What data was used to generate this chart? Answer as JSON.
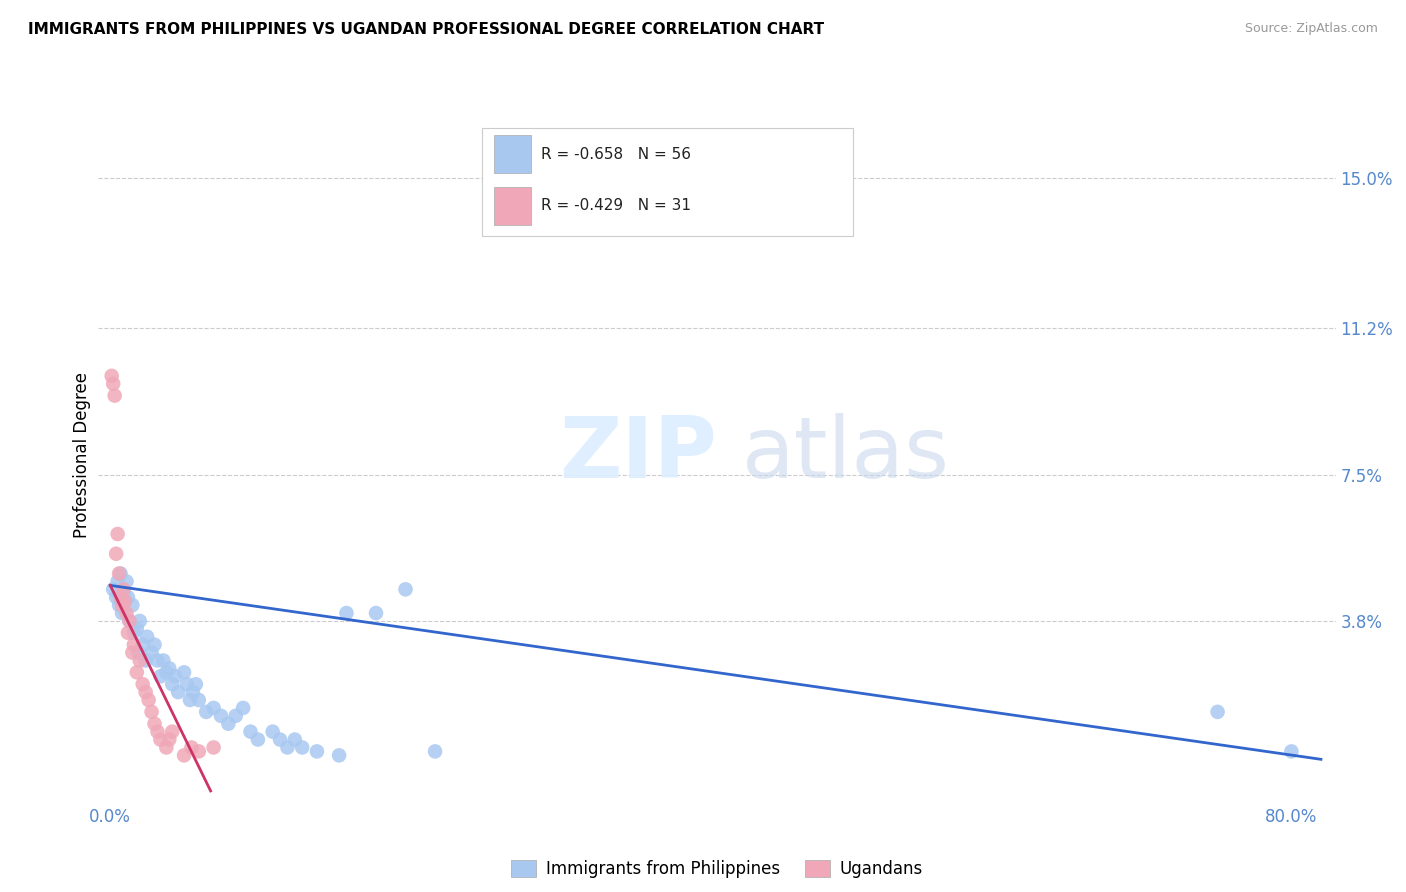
{
  "title": "IMMIGRANTS FROM PHILIPPINES VS UGANDAN PROFESSIONAL DEGREE CORRELATION CHART",
  "source": "Source: ZipAtlas.com",
  "ylabel": "Professional Degree",
  "y_tick_labels": [
    "15.0%",
    "11.2%",
    "7.5%",
    "3.8%"
  ],
  "y_tick_values": [
    0.15,
    0.112,
    0.075,
    0.038
  ],
  "xlim": [
    -0.008,
    0.83
  ],
  "ylim": [
    -0.008,
    0.168
  ],
  "legend1_r": "-0.658",
  "legend1_n": "56",
  "legend2_r": "-0.429",
  "legend2_n": "31",
  "blue_color": "#a8c8f0",
  "pink_color": "#f0a8b8",
  "blue_line_color": "#3366cc",
  "pink_line_color": "#cc3366",
  "blue_line_x": [
    0.0,
    0.82
  ],
  "blue_line_y": [
    0.047,
    0.003
  ],
  "pink_line_x": [
    0.0,
    0.068
  ],
  "pink_line_y": [
    0.047,
    -0.005
  ],
  "philippines_x": [
    0.002,
    0.004,
    0.005,
    0.006,
    0.007,
    0.008,
    0.009,
    0.01,
    0.011,
    0.012,
    0.013,
    0.015,
    0.016,
    0.018,
    0.019,
    0.02,
    0.022,
    0.024,
    0.025,
    0.028,
    0.03,
    0.032,
    0.034,
    0.036,
    0.038,
    0.04,
    0.042,
    0.044,
    0.046,
    0.05,
    0.052,
    0.054,
    0.056,
    0.058,
    0.06,
    0.065,
    0.07,
    0.075,
    0.08,
    0.085,
    0.09,
    0.095,
    0.1,
    0.11,
    0.115,
    0.12,
    0.125,
    0.13,
    0.14,
    0.155,
    0.16,
    0.18,
    0.2,
    0.22,
    0.75,
    0.8
  ],
  "philippines_y": [
    0.046,
    0.044,
    0.048,
    0.042,
    0.05,
    0.04,
    0.045,
    0.043,
    0.048,
    0.044,
    0.038,
    0.042,
    0.035,
    0.036,
    0.03,
    0.038,
    0.032,
    0.028,
    0.034,
    0.03,
    0.032,
    0.028,
    0.024,
    0.028,
    0.025,
    0.026,
    0.022,
    0.024,
    0.02,
    0.025,
    0.022,
    0.018,
    0.02,
    0.022,
    0.018,
    0.015,
    0.016,
    0.014,
    0.012,
    0.014,
    0.016,
    0.01,
    0.008,
    0.01,
    0.008,
    0.006,
    0.008,
    0.006,
    0.005,
    0.004,
    0.04,
    0.04,
    0.046,
    0.005,
    0.015,
    0.005
  ],
  "ugandan_x": [
    0.001,
    0.002,
    0.003,
    0.004,
    0.005,
    0.006,
    0.007,
    0.008,
    0.009,
    0.01,
    0.011,
    0.012,
    0.013,
    0.015,
    0.016,
    0.018,
    0.02,
    0.022,
    0.024,
    0.026,
    0.028,
    0.03,
    0.032,
    0.034,
    0.038,
    0.04,
    0.042,
    0.05,
    0.055,
    0.06,
    0.07
  ],
  "ugandan_y": [
    0.1,
    0.098,
    0.095,
    0.055,
    0.06,
    0.05,
    0.044,
    0.042,
    0.046,
    0.043,
    0.04,
    0.035,
    0.038,
    0.03,
    0.032,
    0.025,
    0.028,
    0.022,
    0.02,
    0.018,
    0.015,
    0.012,
    0.01,
    0.008,
    0.006,
    0.008,
    0.01,
    0.004,
    0.006,
    0.005,
    0.006
  ]
}
